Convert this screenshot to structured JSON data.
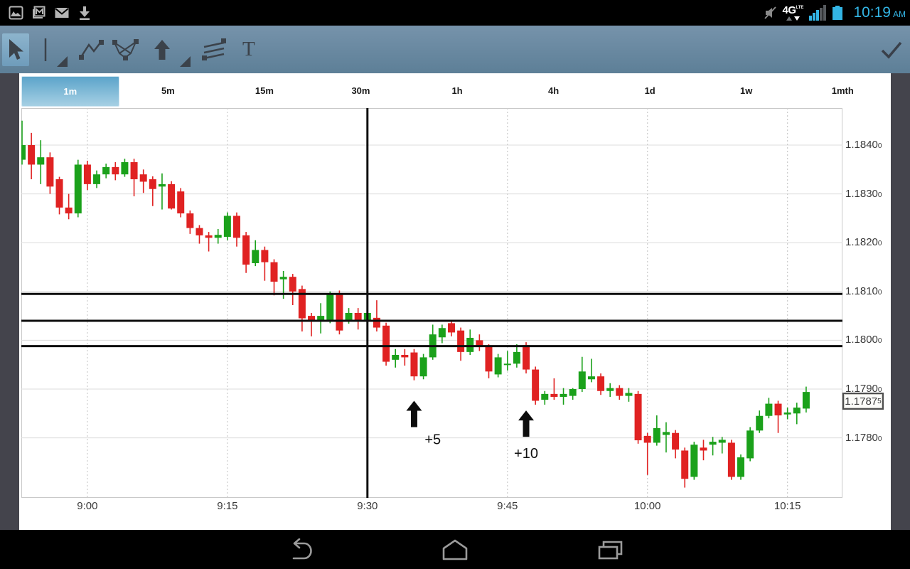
{
  "status_bar": {
    "time": "10:19",
    "time_suffix": "AM",
    "network_label": "4G",
    "network_sub": "LTE",
    "left_icons": [
      "gallery-icon",
      "email-icon",
      "envelope-icon",
      "download-icon"
    ],
    "accent_blue": "#33b5e5"
  },
  "toolbar": {
    "tools": [
      "cursor",
      "vertical-line",
      "polyline",
      "pattern-line",
      "arrow-up",
      "parallel-lines",
      "text"
    ],
    "selected_tool": "cursor",
    "text_tool_label": "T"
  },
  "timeframe_tabs": {
    "items": [
      "1m",
      "5m",
      "15m",
      "30m",
      "1h",
      "4h",
      "1d",
      "1w",
      "1mth"
    ],
    "selected": "1m"
  },
  "chart_data": {
    "type": "candlestick",
    "interval": "1m",
    "start_time": "8:53",
    "interval_minutes": 1,
    "x_axis": {
      "labels": [
        "9:00",
        "9:15",
        "9:30",
        "9:45",
        "10:00",
        "10:15"
      ]
    },
    "y_axis": {
      "labels": [
        "1.1840",
        "1.1830",
        "1.1820",
        "1.1810",
        "1.1800",
        "1.1790",
        "1.1780"
      ],
      "sub_digit": "0"
    },
    "current_price": {
      "main": "1.1787",
      "sub": "5",
      "value": 1.17875
    },
    "colors": {
      "up": "#1ba11b",
      "down": "#e02222",
      "annotation": "#0d0d0d",
      "grid": "#dcdcdc",
      "grid_dotted": "#cccccc",
      "border": "#c9c9c9"
    },
    "candles_ohlc": [
      [
        1.1837,
        1.1845,
        1.1836,
        1.184
      ],
      [
        1.184,
        1.18425,
        1.1833,
        1.1836
      ],
      [
        1.1836,
        1.1841,
        1.1832,
        1.18375
      ],
      [
        1.18375,
        1.18385,
        1.183,
        1.18315
      ],
      [
        1.1833,
        1.18335,
        1.18258,
        1.18272
      ],
      [
        1.18272,
        1.183,
        1.18248,
        1.1826
      ],
      [
        1.1826,
        1.1837,
        1.18252,
        1.1836
      ],
      [
        1.1836,
        1.18368,
        1.18308,
        1.1832
      ],
      [
        1.1832,
        1.18348,
        1.18312,
        1.1834
      ],
      [
        1.1834,
        1.18362,
        1.18332,
        1.18355
      ],
      [
        1.18355,
        1.18365,
        1.18328,
        1.1834
      ],
      [
        1.1834,
        1.18372,
        1.18335,
        1.18365
      ],
      [
        1.18365,
        1.18372,
        1.18295,
        1.1833
      ],
      [
        1.1834,
        1.1835,
        1.18302,
        1.18325
      ],
      [
        1.1833,
        1.18336,
        1.18275,
        1.1831
      ],
      [
        1.18315,
        1.18342,
        1.18268,
        1.1832
      ],
      [
        1.1832,
        1.18326,
        1.18268,
        1.1827
      ],
      [
        1.18305,
        1.18312,
        1.18252,
        1.1826
      ],
      [
        1.1826,
        1.18266,
        1.18218,
        1.1823
      ],
      [
        1.1823,
        1.18236,
        1.18198,
        1.18215
      ],
      [
        1.18215,
        1.18222,
        1.18182,
        1.1821
      ],
      [
        1.1821,
        1.18228,
        1.18198,
        1.18216
      ],
      [
        1.18212,
        1.18262,
        1.18205,
        1.18255
      ],
      [
        1.18255,
        1.18262,
        1.18192,
        1.1821
      ],
      [
        1.18215,
        1.18222,
        1.18138,
        1.18155
      ],
      [
        1.18158,
        1.18205,
        1.18152,
        1.18185
      ],
      [
        1.18185,
        1.18192,
        1.18122,
        1.1816
      ],
      [
        1.1816,
        1.18166,
        1.18092,
        1.1812
      ],
      [
        1.18125,
        1.18142,
        1.18085,
        1.1813
      ],
      [
        1.1813,
        1.18136,
        1.18072,
        1.181
      ],
      [
        1.18105,
        1.18112,
        1.18018,
        1.18045
      ],
      [
        1.1805,
        1.18056,
        1.18008,
        1.1804
      ],
      [
        1.1804,
        1.18076,
        1.18014,
        1.1805
      ],
      [
        1.18042,
        1.181,
        1.18035,
        1.18095
      ],
      [
        1.18095,
        1.18102,
        1.18012,
        1.1802
      ],
      [
        1.1804,
        1.18066,
        1.18034,
        1.18056
      ],
      [
        1.18056,
        1.18066,
        1.18022,
        1.1804
      ],
      [
        1.1804,
        1.18072,
        1.18025,
        1.18056
      ],
      [
        1.18046,
        1.18082,
        1.18018,
        1.18026
      ],
      [
        1.1803,
        1.18036,
        1.17948,
        1.17956
      ],
      [
        1.1796,
        1.17982,
        1.17944,
        1.1797
      ],
      [
        1.1797,
        1.17982,
        1.17948,
        1.17965
      ],
      [
        1.17975,
        1.17982,
        1.17918,
        1.17926
      ],
      [
        1.17926,
        1.17972,
        1.1792,
        1.17965
      ],
      [
        1.17965,
        1.18032,
        1.1796,
        1.18012
      ],
      [
        1.18006,
        1.18032,
        1.17994,
        1.18025
      ],
      [
        1.18035,
        1.18042,
        1.18008,
        1.18016
      ],
      [
        1.1802,
        1.18026,
        1.17958,
        1.17976
      ],
      [
        1.17976,
        1.18022,
        1.1797,
        1.18005
      ],
      [
        1.18,
        1.18012,
        1.17978,
        1.17986
      ],
      [
        1.17986,
        1.17992,
        1.17922,
        1.17936
      ],
      [
        1.1793,
        1.17972,
        1.17924,
        1.17965
      ],
      [
        1.1795,
        1.17978,
        1.17938,
        1.17952
      ],
      [
        1.17952,
        1.17992,
        1.17944,
        1.17976
      ],
      [
        1.1799,
        1.17996,
        1.17932,
        1.1794
      ],
      [
        1.1794,
        1.17946,
        1.17868,
        1.17876
      ],
      [
        1.17878,
        1.17896,
        1.17868,
        1.1789
      ],
      [
        1.1789,
        1.17922,
        1.17878,
        1.17884
      ],
      [
        1.17884,
        1.17902,
        1.17868,
        1.1789
      ],
      [
        1.17886,
        1.17902,
        1.17878,
        1.179
      ],
      [
        1.179,
        1.17966,
        1.17894,
        1.17936
      ],
      [
        1.1792,
        1.17962,
        1.17914,
        1.17926
      ],
      [
        1.17926,
        1.17932,
        1.17888,
        1.17896
      ],
      [
        1.17896,
        1.17912,
        1.17884,
        1.17902
      ],
      [
        1.17902,
        1.17908,
        1.17878,
        1.17886
      ],
      [
        1.17886,
        1.17902,
        1.17874,
        1.17892
      ],
      [
        1.1789,
        1.17896,
        1.17788,
        1.17795
      ],
      [
        1.17804,
        1.1781,
        1.17724,
        1.1779
      ],
      [
        1.1779,
        1.17846,
        1.17784,
        1.1782
      ],
      [
        1.17806,
        1.17832,
        1.1777,
        1.17812
      ],
      [
        1.1781,
        1.17816,
        1.17758,
        1.17776
      ],
      [
        1.17774,
        1.1778,
        1.17698,
        1.17716
      ],
      [
        1.1772,
        1.17792,
        1.17714,
        1.17786
      ],
      [
        1.1778,
        1.17796,
        1.17754,
        1.17774
      ],
      [
        1.17786,
        1.17802,
        1.17764,
        1.17792
      ],
      [
        1.1779,
        1.17802,
        1.17768,
        1.17796
      ],
      [
        1.1779,
        1.17796,
        1.17714,
        1.1772
      ],
      [
        1.1772,
        1.17766,
        1.17714,
        1.1776
      ],
      [
        1.17758,
        1.17822,
        1.17752,
        1.17815
      ],
      [
        1.17815,
        1.17856,
        1.1781,
        1.17845
      ],
      [
        1.17845,
        1.17882,
        1.1784,
        1.1787
      ],
      [
        1.1787,
        1.17876,
        1.1781,
        1.17846
      ],
      [
        1.17848,
        1.17862,
        1.17838,
        1.17852
      ],
      [
        1.1785,
        1.17872,
        1.17828,
        1.17862
      ],
      [
        1.1786,
        1.17905,
        1.17852,
        1.17894
      ]
    ],
    "annotations": {
      "vertical_line_time": "9:30",
      "horizontal_lines": [
        1.18095,
        1.1804,
        1.17988
      ],
      "arrows": [
        {
          "time": "9:35",
          "tip_price": 1.17876
        },
        {
          "time": "9:47",
          "tip_price": 1.17856
        }
      ],
      "texts": [
        {
          "label": "+5",
          "time": "9:37",
          "price": 1.17797
        },
        {
          "label": "+10",
          "time": "9:47",
          "price": 1.17769
        }
      ]
    }
  },
  "nav_bar": {
    "items": [
      "back",
      "home",
      "recents"
    ]
  }
}
